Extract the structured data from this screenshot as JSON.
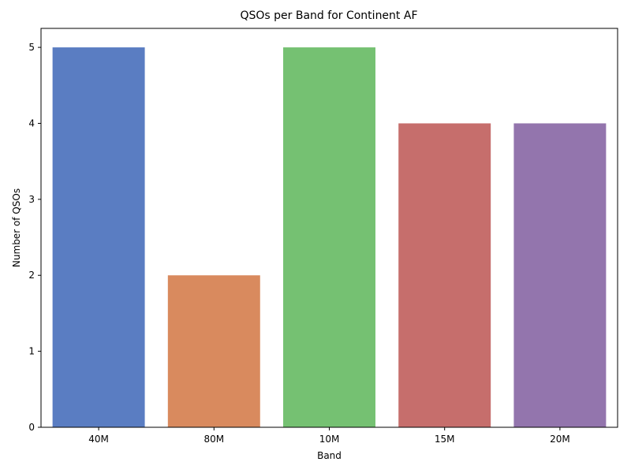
{
  "chart_data": {
    "type": "bar",
    "title": "QSOs per Band for Continent AF",
    "xlabel": "Band",
    "ylabel": "Number of QSOs",
    "categories": [
      "40M",
      "80M",
      "10M",
      "15M",
      "20M"
    ],
    "values": [
      5,
      2,
      5,
      4,
      4
    ],
    "colors": [
      "#5a7dc2",
      "#d98a5e",
      "#75c172",
      "#c66e6c",
      "#9375ad"
    ],
    "ylim": [
      0,
      5.25
    ],
    "yticks": [
      0,
      1,
      2,
      3,
      4,
      5
    ],
    "grid": false,
    "legend": "none"
  }
}
